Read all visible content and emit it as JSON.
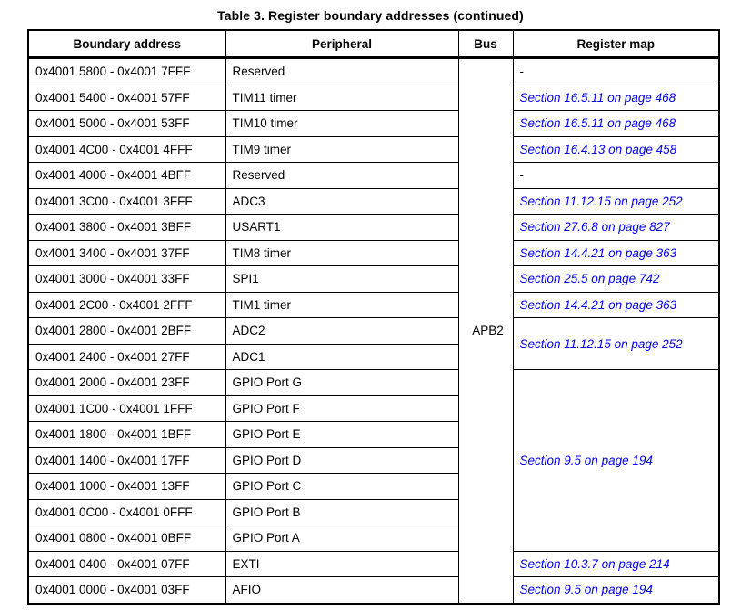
{
  "title": "Table 3. Register boundary addresses (continued)",
  "colors": {
    "text": "#000000",
    "border": "#000000",
    "link": "#0000f0"
  },
  "table": {
    "headers": [
      "Boundary address",
      "Peripheral",
      "Bus",
      "Register map"
    ],
    "bus": {
      "label": "APB2",
      "rowspan": 21
    },
    "rows": [
      {
        "address": "0x4001 5800 - 0x4001 7FFF",
        "peripheral": "Reserved",
        "map": {
          "text": "-",
          "link": false
        }
      },
      {
        "address": "0x4001 5400 - 0x4001 57FF",
        "peripheral": "TIM11 timer",
        "map": {
          "text": "Section 16.5.11 on page 468",
          "link": true
        }
      },
      {
        "address": "0x4001 5000 - 0x4001 53FF",
        "peripheral": "TIM10 timer",
        "map": {
          "text": "Section 16.5.11 on page 468",
          "link": true
        }
      },
      {
        "address": "0x4001 4C00 - 0x4001 4FFF",
        "peripheral": "TIM9 timer",
        "map": {
          "text": "Section 16.4.13 on page 458",
          "link": true
        }
      },
      {
        "address": "0x4001 4000 - 0x4001 4BFF",
        "peripheral": "Reserved",
        "map": {
          "text": "-",
          "link": false
        }
      },
      {
        "address": "0x4001 3C00 - 0x4001 3FFF",
        "peripheral": "ADC3",
        "map": {
          "text": "Section 11.12.15 on page 252",
          "link": true
        }
      },
      {
        "address": "0x4001 3800 - 0x4001 3BFF",
        "peripheral": "USART1",
        "map": {
          "text": "Section 27.6.8 on page 827",
          "link": true
        }
      },
      {
        "address": "0x4001 3400 - 0x4001 37FF",
        "peripheral": "TIM8 timer",
        "map": {
          "text": "Section 14.4.21 on page 363",
          "link": true
        }
      },
      {
        "address": "0x4001 3000 - 0x4001 33FF",
        "peripheral": "SPI1",
        "map": {
          "text": "Section 25.5 on page 742",
          "link": true
        }
      },
      {
        "address": "0x4001 2C00 - 0x4001 2FFF",
        "peripheral": "TIM1 timer",
        "map": {
          "text": "Section 14.4.21 on page 363",
          "link": true
        }
      },
      {
        "address": "0x4001 2800 - 0x4001 2BFF",
        "peripheral": "ADC2",
        "map": {
          "text": "Section 11.12.15 on page 252",
          "link": true,
          "rowspan": 2
        }
      },
      {
        "address": "0x4001 2400 - 0x4001 27FF",
        "peripheral": "ADC1",
        "map": null
      },
      {
        "address": "0x4001 2000 - 0x4001 23FF",
        "peripheral": "GPIO Port G",
        "map": {
          "text": "Section 9.5 on page 194",
          "link": true,
          "rowspan": 7
        }
      },
      {
        "address": "0x4001 1C00 - 0x4001 1FFF",
        "peripheral": "GPIO Port F",
        "map": null
      },
      {
        "address": "0x4001 1800 - 0x4001 1BFF",
        "peripheral": "GPIO Port E",
        "map": null
      },
      {
        "address": "0x4001 1400 - 0x4001 17FF",
        "peripheral": "GPIO Port D",
        "map": null
      },
      {
        "address": "0x4001 1000 - 0x4001 13FF",
        "peripheral": "GPIO Port C",
        "map": null
      },
      {
        "address": "0x4001 0C00 - 0x4001 0FFF",
        "peripheral": "GPIO Port B",
        "map": null
      },
      {
        "address": "0x4001 0800 - 0x4001 0BFF",
        "peripheral": "GPIO Port A",
        "map": null,
        "thick_top": true
      },
      {
        "address": "0x4001 0400 - 0x4001 07FF",
        "peripheral": "EXTI",
        "map": {
          "text": "Section 10.3.7 on page 214",
          "link": true
        }
      },
      {
        "address": "0x4001 0000 - 0x4001 03FF",
        "peripheral": "AFIO",
        "map": {
          "text": "Section 9.5 on page 194",
          "link": true
        }
      }
    ]
  }
}
